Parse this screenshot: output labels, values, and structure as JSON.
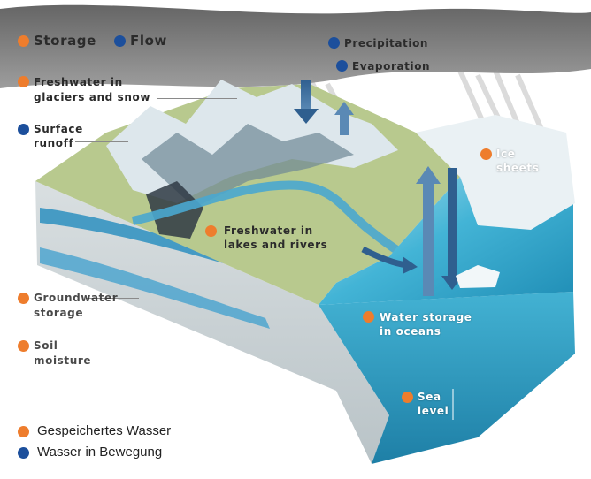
{
  "colors": {
    "storage": "#ee7d2d",
    "flow": "#1c4f9c",
    "sky": "#5e5e5e",
    "ocean": "#2aa3c8",
    "land": "#a9c27a",
    "snow": "#dfe9ee"
  },
  "key": {
    "storage": "Storage",
    "flow": "Flow"
  },
  "labels": {
    "precipitation": "Precipitation",
    "evaporation": "Evaporation",
    "glaciers": [
      "Freshwater in",
      "glaciers and snow"
    ],
    "runoff": [
      "Surface",
      "runoff"
    ],
    "ice_sheets": [
      "Ice",
      "sheets"
    ],
    "lakes_rivers": [
      "Freshwater in",
      "lakes and rivers"
    ],
    "groundwater": [
      "Groundwater",
      "storage"
    ],
    "soil": [
      "Soil",
      "moisture"
    ],
    "ocean_storage": [
      "Water storage",
      "in oceans"
    ],
    "sea_level": [
      "Sea",
      "level"
    ]
  },
  "legend": {
    "stored": "Gespeichertes Wasser",
    "moving": "Wasser in Bewegung"
  }
}
